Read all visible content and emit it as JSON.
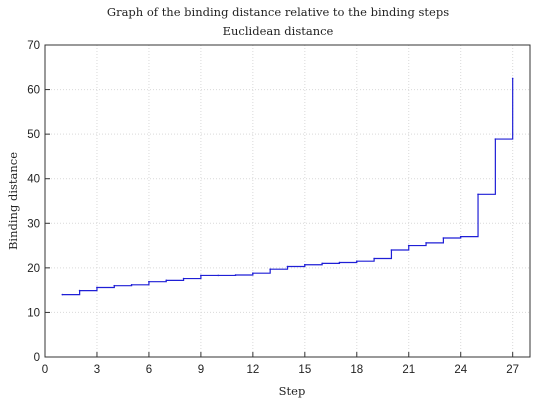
{
  "chart_data": {
    "type": "line",
    "title": "Graph of the binding distance relative to the binding steps",
    "subtitle": "Euclidean distance",
    "xlabel": "Step",
    "ylabel": "Binding distance",
    "xlim": [
      0,
      28
    ],
    "ylim": [
      0,
      70
    ],
    "xticks": [
      0,
      3,
      6,
      9,
      12,
      15,
      18,
      21,
      24,
      27
    ],
    "yticks": [
      0,
      10,
      20,
      30,
      40,
      50,
      60,
      70
    ],
    "grid": true,
    "step_style": "post",
    "series": [
      {
        "color": "#1f1fd6",
        "x": [
          1,
          2,
          3,
          4,
          5,
          6,
          7,
          8,
          9,
          10,
          11,
          12,
          13,
          14,
          15,
          16,
          17,
          18,
          19,
          20,
          21,
          22,
          23,
          24,
          25,
          26,
          27
        ],
        "y": [
          14.0,
          14.9,
          15.6,
          16.0,
          16.2,
          16.9,
          17.2,
          17.6,
          18.3,
          18.3,
          18.4,
          18.8,
          19.7,
          20.3,
          20.7,
          21.0,
          21.2,
          21.5,
          22.1,
          24.0,
          25.0,
          25.6,
          26.7,
          27.0,
          36.5,
          48.9,
          62.5
        ]
      }
    ]
  }
}
